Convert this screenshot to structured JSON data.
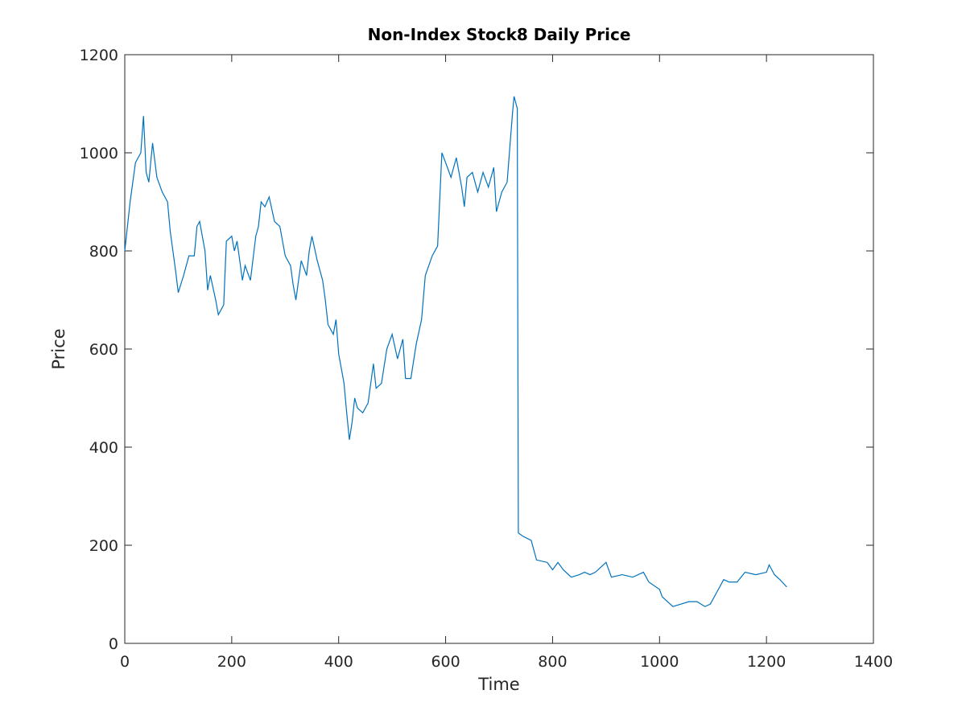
{
  "chart_data": {
    "type": "line",
    "title": "Non-Index Stock8 Daily Price",
    "xlabel": "Time",
    "ylabel": "Price",
    "x": [
      0,
      10,
      20,
      30,
      35,
      40,
      45,
      52,
      60,
      70,
      80,
      85,
      95,
      100,
      110,
      120,
      130,
      135,
      140,
      150,
      155,
      160,
      170,
      175,
      185,
      190,
      200,
      205,
      210,
      220,
      225,
      235,
      245,
      250,
      255,
      262,
      270,
      280,
      290,
      300,
      310,
      315,
      320,
      330,
      340,
      345,
      350,
      360,
      370,
      375,
      380,
      390,
      395,
      400,
      410,
      415,
      420,
      425,
      430,
      435,
      445,
      455,
      465,
      470,
      480,
      490,
      500,
      510,
      520,
      525,
      535,
      545,
      555,
      562,
      575,
      585,
      593,
      600,
      610,
      620,
      630,
      635,
      640,
      650,
      660,
      670,
      680,
      690,
      695,
      705,
      715,
      725,
      728,
      734,
      736,
      745,
      760,
      770,
      790,
      800,
      810,
      820,
      835,
      850,
      860,
      870,
      880,
      900,
      910,
      930,
      950,
      970,
      980,
      1000,
      1005,
      1015,
      1025,
      1040,
      1055,
      1070,
      1085,
      1095,
      1105,
      1120,
      1130,
      1145,
      1160,
      1180,
      1200,
      1205,
      1215,
      1225,
      1238
    ],
    "series": [
      {
        "name": "Price",
        "color": "#0072bd",
        "values": [
          800,
          900,
          980,
          1000,
          1075,
          960,
          940,
          1020,
          950,
          920,
          900,
          840,
          760,
          715,
          750,
          790,
          790,
          850,
          860,
          800,
          720,
          750,
          700,
          670,
          690,
          820,
          830,
          800,
          820,
          740,
          770,
          740,
          830,
          850,
          900,
          890,
          910,
          860,
          850,
          790,
          770,
          730,
          700,
          780,
          750,
          800,
          830,
          780,
          740,
          700,
          650,
          630,
          660,
          590,
          530,
          470,
          415,
          450,
          500,
          480,
          470,
          490,
          570,
          520,
          530,
          600,
          630,
          580,
          620,
          540,
          540,
          610,
          660,
          750,
          790,
          810,
          1000,
          980,
          950,
          990,
          930,
          890,
          950,
          960,
          920,
          960,
          930,
          970,
          880,
          920,
          940,
          1080,
          1115,
          1090,
          225,
          218,
          210,
          170,
          165,
          150,
          165,
          150,
          135,
          140,
          145,
          140,
          145,
          165,
          135,
          140,
          135,
          145,
          125,
          110,
          95,
          85,
          75,
          80,
          85,
          85,
          75,
          80,
          100,
          130,
          125,
          125,
          145,
          140,
          145,
          160,
          140,
          130,
          115
        ]
      }
    ],
    "xlim": [
      0,
      1400
    ],
    "xticks": [
      0,
      200,
      400,
      600,
      800,
      1000,
      1200,
      1400
    ],
    "ylim": [
      0,
      1200
    ],
    "yticks": [
      0,
      200,
      400,
      600,
      800,
      1000,
      1200
    ],
    "grid": false
  }
}
